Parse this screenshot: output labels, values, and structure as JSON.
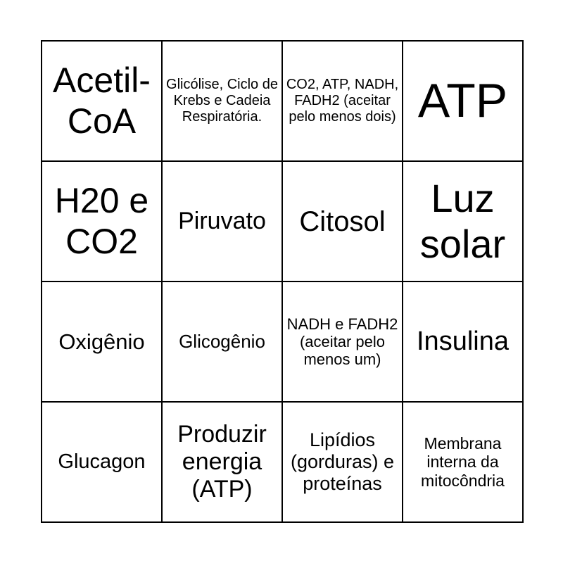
{
  "cells": [
    {
      "text": "Acetil-CoA",
      "size": 50
    },
    {
      "text": "Glicólise, Ciclo de Krebs e Cadeia Respiratória.",
      "size": 20
    },
    {
      "text": "CO2, ATP, NADH, FADH2 (aceitar pelo menos dois)",
      "size": 20
    },
    {
      "text": "ATP",
      "size": 68
    },
    {
      "text": "H20 e CO2",
      "size": 50
    },
    {
      "text": "Piruvato",
      "size": 34
    },
    {
      "text": "Citosol",
      "size": 40
    },
    {
      "text": "Luz solar",
      "size": 56
    },
    {
      "text": "Oxigênio",
      "size": 31
    },
    {
      "text": "Glicogênio",
      "size": 26
    },
    {
      "text": "NADH e FADH2 (aceitar pelo menos um)",
      "size": 22
    },
    {
      "text": "Insulina",
      "size": 38
    },
    {
      "text": "Glucagon",
      "size": 29
    },
    {
      "text": "Produzir energia (ATP)",
      "size": 34
    },
    {
      "text": "Lipídios (gorduras) e proteínas",
      "size": 27
    },
    {
      "text": "Membrana interna da mitocôndria",
      "size": 23
    }
  ]
}
